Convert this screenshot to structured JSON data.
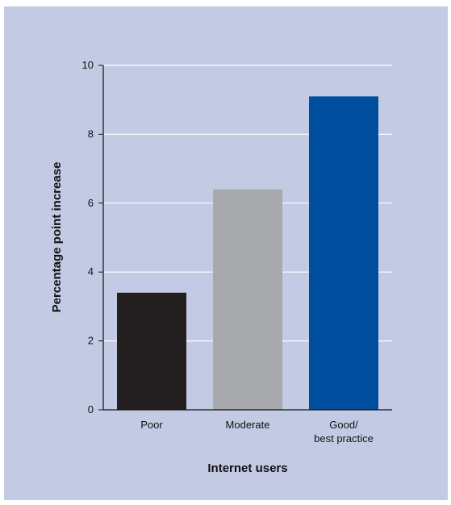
{
  "chart_data": {
    "type": "bar",
    "categories": [
      [
        "Poor"
      ],
      [
        "Moderate"
      ],
      [
        "Good/",
        "best practice"
      ]
    ],
    "values": [
      3.4,
      6.4,
      9.1
    ],
    "colors": [
      "#231f20",
      "#a7a9ac",
      "#004f9f"
    ],
    "ylabel": "Percentage point increase",
    "xlabel": "Internet users",
    "ylim": [
      0,
      10
    ],
    "yticks": [
      "0",
      "2",
      "4",
      "6",
      "8",
      "10"
    ],
    "grid": true,
    "grid_color": "#ffffff",
    "background": "#c3cbe4"
  }
}
